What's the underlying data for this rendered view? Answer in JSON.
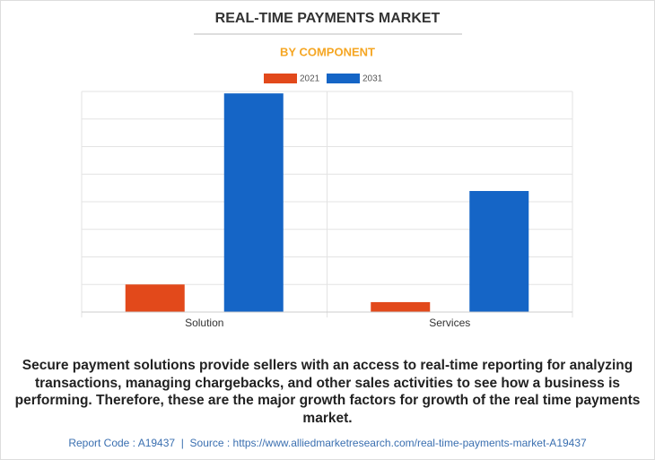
{
  "chart_data": {
    "type": "bar",
    "title": "REAL-TIME PAYMENTS MARKET",
    "subtitle": "BY COMPONENT",
    "categories": [
      "Solution",
      "Services"
    ],
    "series": [
      {
        "name": "2021",
        "color": "#e2491b",
        "values": [
          1.0,
          0.36
        ]
      },
      {
        "name": "2031",
        "color": "#1565c6",
        "values": [
          7.93,
          4.39
        ]
      }
    ],
    "ylim": [
      0,
      8
    ],
    "yticks": [
      0,
      1,
      2,
      3,
      4,
      5,
      6,
      7,
      8
    ],
    "grid": true
  },
  "description": "Secure payment solutions provide sellers with an access to real-time reporting for analyzing transactions, managing chargebacks, and other sales activities to see how a business is performing. Therefore, these are the major growth factors for growth of the real time payments market.",
  "footer": "Report Code : A19437  |  Source : https://www.alliedmarketresearch.com/real-time-payments-market-A19437"
}
